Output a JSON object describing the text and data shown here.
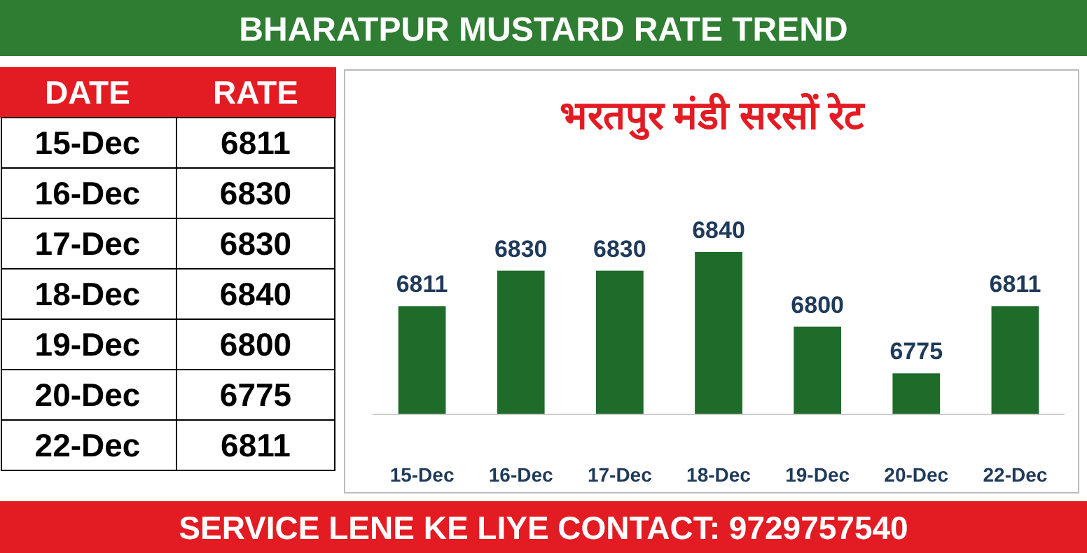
{
  "chart_data": [
    {
      "type": "other",
      "subtitle": "BHARATPUR MUSTARD RATE TREND",
      "annotations": [
        "DATE",
        "RATE",
        "15-Dec",
        "6811",
        "16-Dec",
        "6830",
        "17-Dec",
        "6830",
        "18-Dec",
        "6840",
        "19-Dec",
        "6800",
        "20-Dec",
        "6775",
        "22-Dec",
        "6811"
      ]
    },
    {
      "type": "bar",
      "title": "भरतपुर मंडी सरसों रेट",
      "categories": [
        "15-Dec",
        "16-Dec",
        "17-Dec",
        "18-Dec",
        "19-Dec",
        "20-Dec",
        "22-Dec"
      ],
      "values": [
        6811,
        6830,
        6830,
        6840,
        6800,
        6775,
        6811
      ],
      "color": "#1e6b2a",
      "data_labels": true,
      "ylim": [
        6753,
        6840
      ],
      "annotations": [
        "SERVICE LENE KE LIYE CONTACT: 9729757540"
      ]
    }
  ]
}
